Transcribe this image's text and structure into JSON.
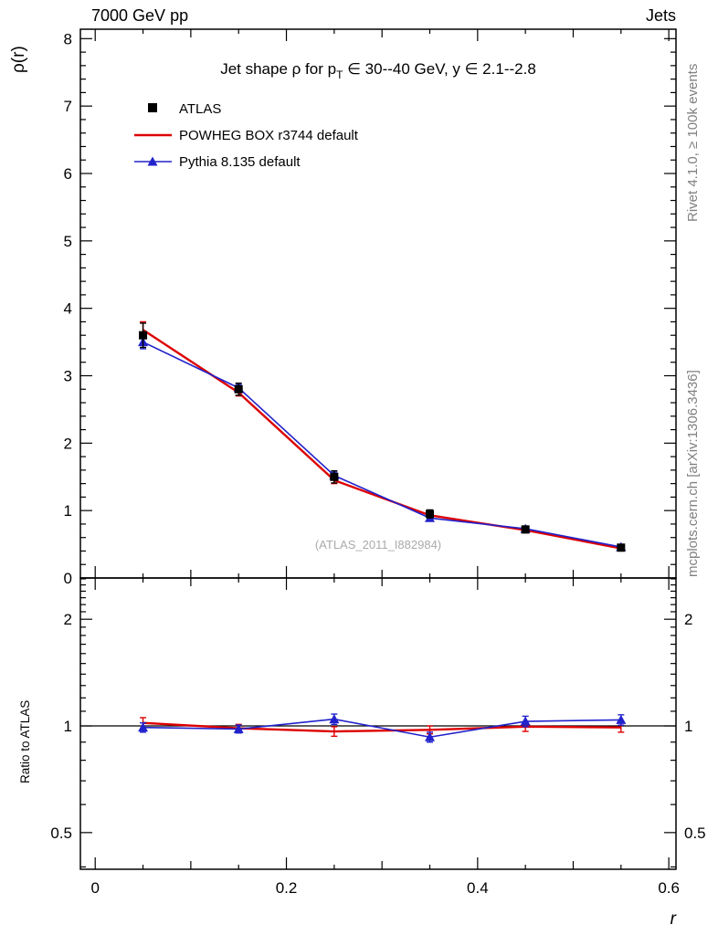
{
  "header": {
    "left": "7000 GeV pp",
    "right": "Jets"
  },
  "title": {
    "pre": "Jet shape ρ for p",
    "sub": "T",
    "post": " ∈ 30--40 GeV, y ∈ 2.1--2.8"
  },
  "watermark": "(ATLAS_2011_I882984)",
  "side_notes": {
    "rivet": "Rivet 4.1.0, ≥ 100k events",
    "mcplots": "mcplots.cern.ch [arXiv:1306.3436]"
  },
  "axes": {
    "y_top_label": "ρ(r)",
    "y_ratio_label": "Ratio to ATLAS",
    "x_label": "r"
  },
  "chart_data": {
    "type": "line",
    "x": [
      0.05,
      0.15,
      0.25,
      0.35,
      0.45,
      0.55
    ],
    "xlim": [
      -0.0155,
      0.6075
    ],
    "xticks": [
      0,
      0.2,
      0.4,
      0.6
    ],
    "x_minor_step": 0.05,
    "top_panel": {
      "ylim": [
        0,
        8.14
      ],
      "yticks": [
        0,
        1,
        2,
        3,
        4,
        5,
        6,
        7,
        8
      ],
      "y_minor_step": 0.2,
      "series": [
        {
          "name": "ATLAS",
          "color": "#000000",
          "marker": "square",
          "line": false,
          "values": [
            3.6,
            2.8,
            1.5,
            0.95,
            0.72,
            0.45
          ],
          "errors": [
            0.18,
            0.09,
            0.09,
            0.06,
            0.05,
            0.035
          ]
        },
        {
          "name": "POWHEG BOX r3744 default",
          "color": "#dd0000",
          "marker": "none",
          "line": true,
          "values": [
            3.68,
            2.75,
            1.45,
            0.93,
            0.71,
            0.44
          ],
          "errors": [
            0.12,
            0.05,
            0.05,
            0.035,
            0.03,
            0.02
          ]
        },
        {
          "name": "Pythia 8.135 default",
          "color": "#2222cc",
          "marker": "triangle",
          "line": true,
          "values": [
            3.5,
            2.82,
            1.52,
            0.89,
            0.73,
            0.46
          ],
          "errors": [
            0.1,
            0.05,
            0.05,
            0.035,
            0.03,
            0.02
          ]
        }
      ]
    },
    "ratio_panel": {
      "scale": "log",
      "ylim": [
        0.394,
        2.615
      ],
      "yticks": [
        0.5,
        1,
        2
      ],
      "reference_line": 1,
      "series": [
        {
          "name": "POWHEG BOX r3744 default",
          "color": "#dd0000",
          "marker": "none",
          "line": true,
          "values": [
            1.02,
            0.985,
            0.965,
            0.975,
            0.995,
            0.99
          ],
          "errors": [
            0.035,
            0.025,
            0.03,
            0.025,
            0.03,
            0.03
          ]
        },
        {
          "name": "Pythia 8.135 default",
          "color": "#2222cc",
          "marker": "triangle",
          "line": true,
          "values": [
            0.99,
            0.98,
            1.045,
            0.93,
            1.03,
            1.04
          ],
          "errors": [
            0.03,
            0.025,
            0.035,
            0.03,
            0.035,
            0.035
          ]
        }
      ]
    }
  }
}
